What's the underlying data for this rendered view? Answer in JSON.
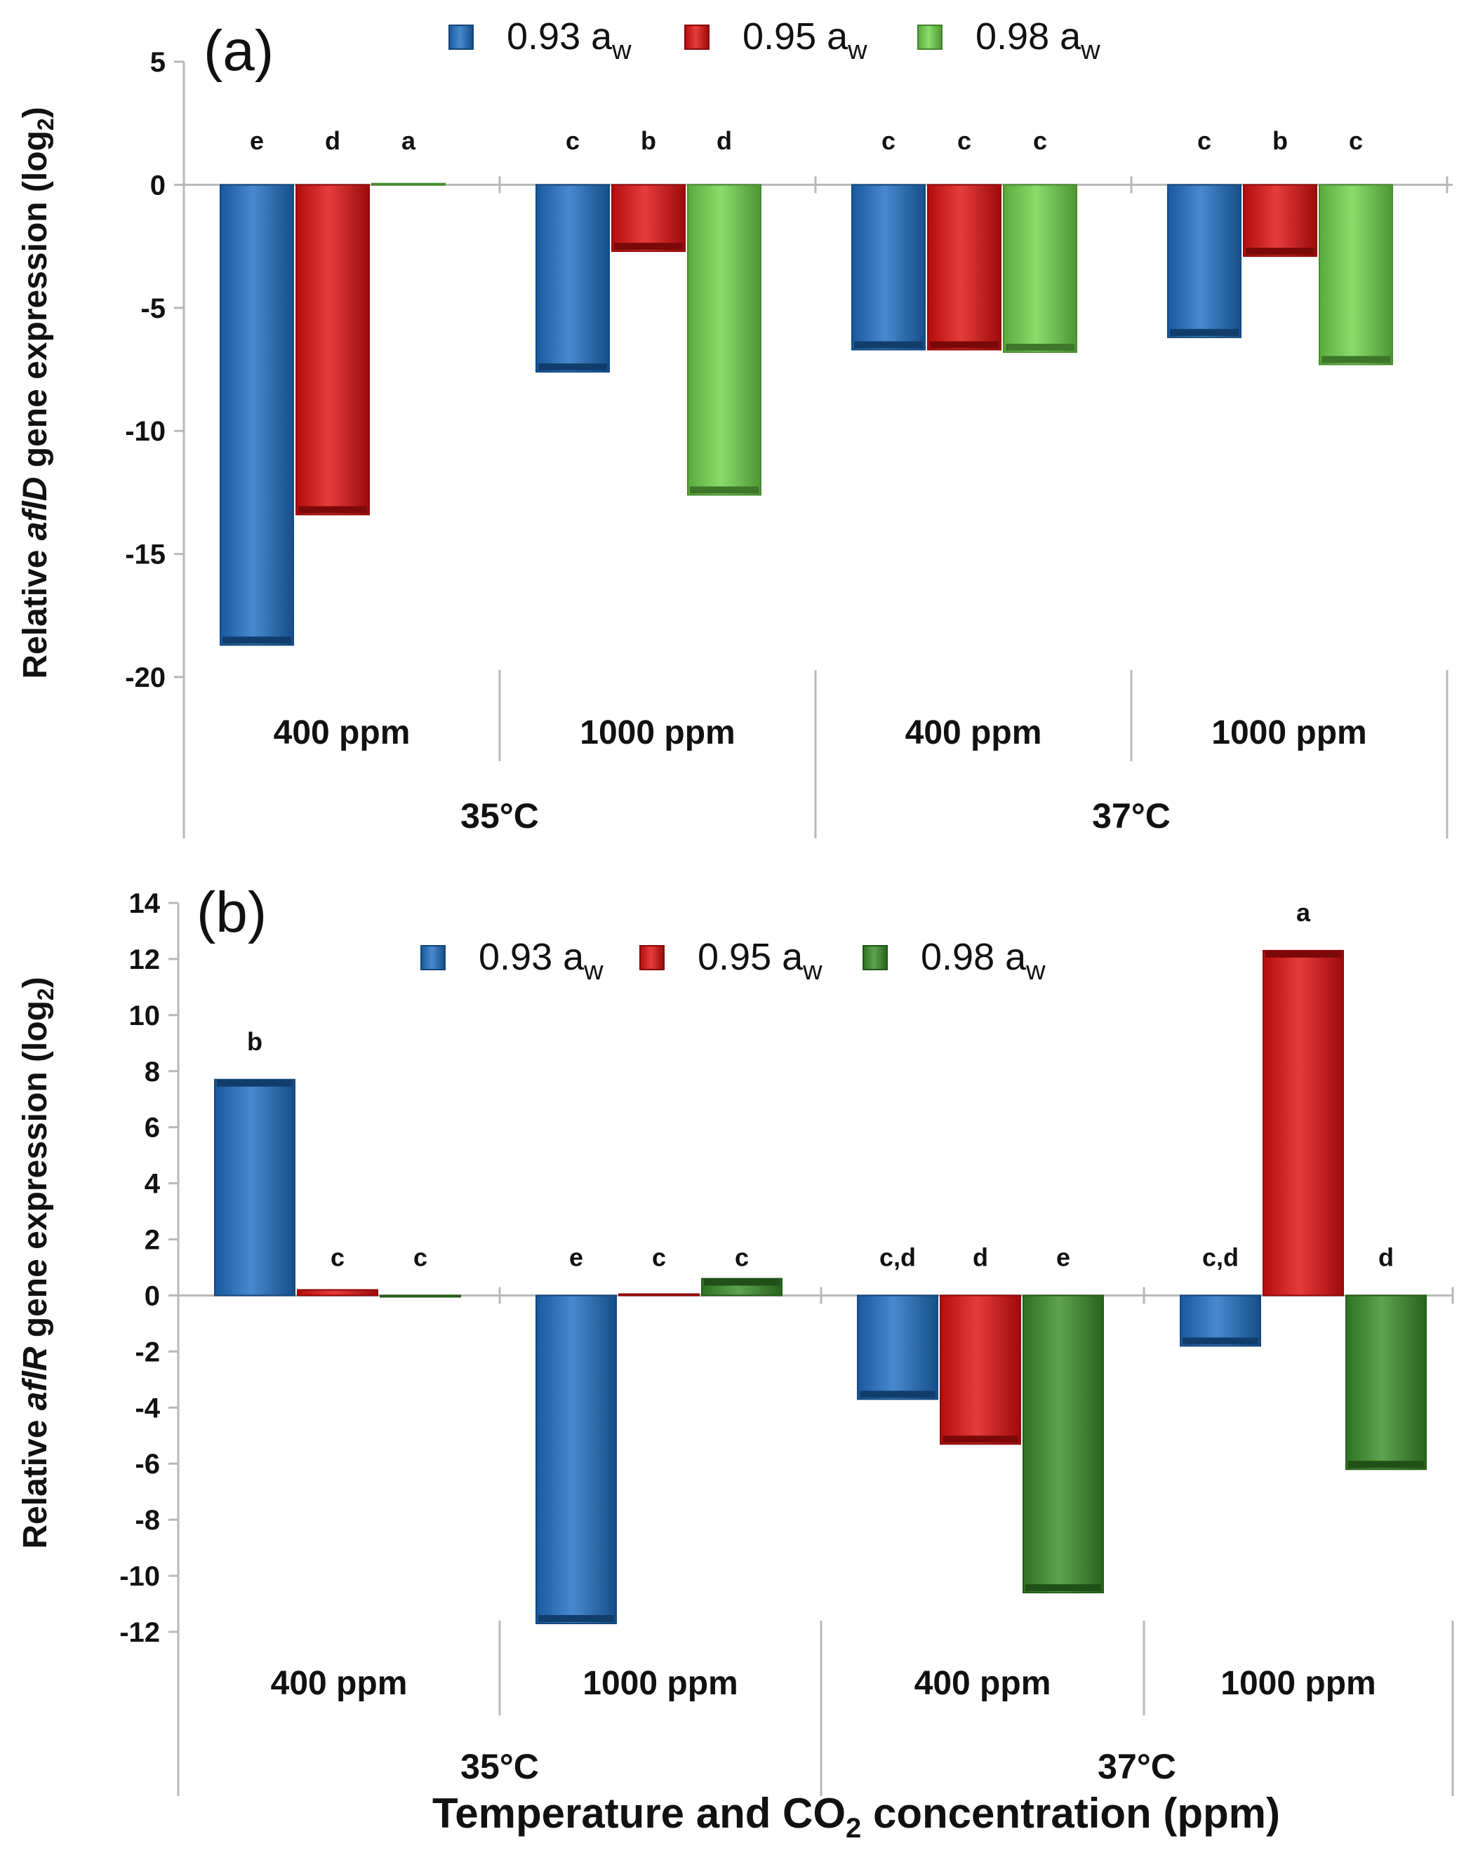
{
  "figure_title": "Temperature and CO2 concentration (ppm)",
  "figure_title_main": "Temperature and CO",
  "figure_title_sub": "2",
  "figure_title_end": " concentration (ppm)",
  "chart_data": [
    {
      "type": "bar",
      "panel_label": "(a)",
      "ylabel_prefix": "Relative ",
      "ylabel_gene": "aflD",
      "ylabel_suffix": " gene expression (log",
      "ylabel_sub": "2",
      "ylabel_end": ")",
      "ylim": [
        -20,
        5
      ],
      "yticks": [
        5,
        0,
        -5,
        -10,
        -15,
        -20
      ],
      "categories": [
        "400 ppm",
        "1000 ppm",
        "400 ppm",
        "1000 ppm"
      ],
      "groups": [
        "35°C",
        "37°C"
      ],
      "series": [
        {
          "name": "0.93 aw",
          "legend_main": "0.93 a",
          "legend_sub": "w",
          "color": "#1f6fc4",
          "values": [
            -18.7,
            -7.6,
            -6.7,
            -6.2
          ],
          "significance": [
            "e",
            "c",
            "c",
            "c"
          ]
        },
        {
          "name": "0.95 aw",
          "legend_main": "0.95 a",
          "legend_sub": "w",
          "color": "#e01010",
          "values": [
            -13.4,
            -2.7,
            -6.7,
            -2.9
          ],
          "significance": [
            "d",
            "b",
            "c",
            "b"
          ]
        },
        {
          "name": "0.98 aw",
          "legend_main": "0.98 a",
          "legend_sub": "w",
          "color": "#6fd64a",
          "values": [
            0.05,
            -12.6,
            -6.8,
            -7.3
          ],
          "significance": [
            "a",
            "d",
            "c",
            "c"
          ]
        }
      ]
    },
    {
      "type": "bar",
      "panel_label": "(b)",
      "ylabel_prefix": "Relative ",
      "ylabel_gene": "aflR",
      "ylabel_suffix": " gene expression (log",
      "ylabel_sub": "2",
      "ylabel_end": ")",
      "ylim": [
        -12,
        14
      ],
      "yticks": [
        14,
        12,
        10,
        8,
        6,
        4,
        2,
        0,
        -2,
        -4,
        -6,
        -8,
        -10,
        -12
      ],
      "categories": [
        "400 ppm",
        "1000 ppm",
        "400 ppm",
        "1000 ppm"
      ],
      "groups": [
        "35°C",
        "37°C"
      ],
      "series": [
        {
          "name": "0.93 aw",
          "legend_main": "0.93 a",
          "legend_sub": "w",
          "color": "#1f6fc4",
          "values": [
            7.7,
            -11.7,
            -3.7,
            -1.8
          ],
          "significance": [
            "b",
            "e",
            "c,d",
            "c,d"
          ]
        },
        {
          "name": "0.95 aw",
          "legend_main": "0.95 a",
          "legend_sub": "w",
          "color": "#e01010",
          "values": [
            0.2,
            0.05,
            -5.3,
            12.3
          ],
          "significance": [
            "c",
            "c",
            "d",
            "a"
          ]
        },
        {
          "name": "0.98 aw",
          "legend_main": "0.98 a",
          "legend_sub": "w",
          "color": "#3a8f2a",
          "values": [
            0.0,
            0.6,
            -10.6,
            -6.2
          ],
          "significance": [
            "c",
            "c",
            "e",
            "d"
          ]
        }
      ]
    }
  ]
}
